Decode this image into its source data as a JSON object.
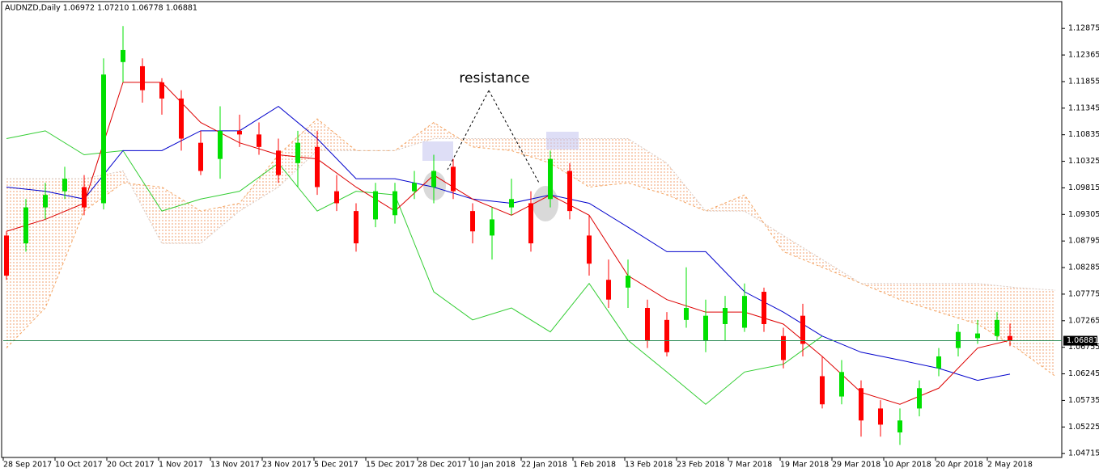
{
  "chart_data": {
    "type": "candlestick",
    "title": "AUDNZD,Daily  1.06972 1.07210 1.06778 1.06881",
    "annotation": "resistance",
    "x": [
      0,
      3,
      6,
      9,
      12,
      15,
      18,
      21,
      24,
      27,
      30,
      33,
      36,
      39,
      42,
      45,
      48,
      51,
      54,
      57,
      60,
      63,
      66,
      69,
      72,
      75,
      78,
      81,
      84,
      87,
      90,
      93,
      96,
      99,
      102,
      105,
      108,
      111,
      114,
      117,
      120,
      123,
      126,
      129,
      132,
      135,
      138,
      141,
      144,
      147,
      150,
      153,
      155
    ],
    "open": [
      1.089,
      1.0875,
      1.0944,
      1.0975,
      1.0983,
      1.0952,
      1.1223,
      1.1215,
      1.1184,
      1.1153,
      1.1068,
      1.1037,
      1.1091,
      1.1084,
      1.1053,
      1.1029,
      1.106,
      1.0975,
      1.0937,
      1.0921,
      1.0929,
      1.0975,
      1.0983,
      1.1022,
      1.0937,
      1.089,
      1.0944,
      1.0952,
      1.096,
      1.1014,
      1.089,
      1.0805,
      1.079,
      1.0751,
      1.0728,
      1.0728,
      1.0689,
      1.072,
      1.0713,
      1.0782,
      1.0697,
      1.0736,
      1.062,
      1.0581,
      1.0597,
      1.0558,
      1.0512,
      1.0558,
      1.0635,
      1.0674,
      1.0693,
      1.0697,
      1.06972
    ],
    "high": [
      1.0898,
      1.096,
      1.0991,
      1.1022,
      1.1006,
      1.123,
      1.1292,
      1.123,
      1.1192,
      1.1169,
      1.1091,
      1.1138,
      1.1122,
      1.1107,
      1.1076,
      1.1091,
      1.1091,
      1.1006,
      1.0952,
      1.0991,
      1.0991,
      1.1014,
      1.1045,
      1.1037,
      1.0952,
      1.0944,
      1.0999,
      1.0975,
      1.1053,
      1.1029,
      1.0929,
      1.0844,
      1.0844,
      1.0767,
      1.0743,
      1.0829,
      1.0767,
      1.0774,
      1.0798,
      1.079,
      1.0713,
      1.0759,
      1.0658,
      1.0651,
      1.0612,
      1.0574,
      1.0558,
      1.0612,
      1.0674,
      1.072,
      1.0728,
      1.0743,
      1.0721
    ],
    "low": [
      1.0805,
      1.0859,
      1.0921,
      1.096,
      1.0929,
      1.094,
      1.1184,
      1.1145,
      1.1122,
      1.1053,
      1.1006,
      1.0999,
      1.106,
      1.1045,
      1.0991,
      1.0983,
      1.0968,
      1.0937,
      1.0859,
      1.0906,
      1.0913,
      1.096,
      1.0952,
      1.096,
      1.0875,
      1.0844,
      1.0929,
      1.0859,
      1.0944,
      1.0921,
      1.0813,
      1.0751,
      1.0751,
      1.0674,
      1.0658,
      1.0713,
      1.0666,
      1.0689,
      1.0705,
      1.0705,
      1.0635,
      1.0658,
      1.0558,
      1.0566,
      1.0504,
      1.0504,
      1.0488,
      1.0543,
      1.062,
      1.0658,
      1.0682,
      1.0689,
      1.06778
    ],
    "close": [
      1.0813,
      1.0944,
      1.0968,
      1.0999,
      1.0944,
      1.1199,
      1.1246,
      1.1169,
      1.1153,
      1.1076,
      1.1014,
      1.1091,
      1.1084,
      1.106,
      1.1006,
      1.1068,
      1.0983,
      1.0952,
      1.0875,
      1.0975,
      1.0975,
      1.0991,
      1.1014,
      1.0975,
      1.0898,
      1.0921,
      1.096,
      1.0875,
      1.1037,
      1.0937,
      1.0836,
      1.0767,
      1.0813,
      1.0689,
      1.0666,
      1.0751,
      1.0736,
      1.0751,
      1.0774,
      1.072,
      1.0651,
      1.0682,
      1.0566,
      1.0628,
      1.0535,
      1.0527,
      1.0535,
      1.0597,
      1.0658,
      1.0705,
      1.0702,
      1.0728,
      1.06881
    ],
    "up_color": "#00e000",
    "down_color": "#ff0000",
    "lines": [
      {
        "color": "#f4a460",
        "dash": "3,3",
        "x": [
          0,
          6,
          12,
          18,
          24,
          30,
          36,
          42,
          48,
          54,
          60,
          66,
          72,
          78,
          84,
          90,
          96,
          102,
          108,
          114,
          120,
          126,
          132,
          138,
          144,
          150,
          156,
          162
        ],
        "values": [
          1.0674,
          1.0751,
          1.0937,
          1.0991,
          1.0983,
          1.0937,
          1.0952,
          1.1045,
          1.1114,
          1.1053,
          1.1053,
          1.1107,
          1.106,
          1.1053,
          1.1029,
          1.0983,
          1.0991,
          1.0968,
          1.0937,
          1.0968,
          1.0859,
          1.0829,
          1.0798,
          1.0767,
          1.0743,
          1.072,
          1.0674,
          1.062
        ]
      },
      {
        "color": "#d8c8c0",
        "dash": "2,2",
        "x": [
          0,
          6,
          12,
          18,
          24,
          30,
          36,
          42,
          48,
          54,
          60,
          66,
          72,
          78,
          84,
          90,
          96,
          102,
          108,
          114,
          120,
          126,
          132,
          138,
          144,
          150,
          156,
          162
        ],
        "values": [
          1.0999,
          1.0999,
          1.0999,
          1.1014,
          1.0875,
          1.0875,
          1.0937,
          1.0983,
          1.1053,
          1.1053,
          1.1053,
          1.1076,
          1.1076,
          1.1076,
          1.1076,
          1.1076,
          1.1076,
          1.1029,
          1.0937,
          1.0937,
          1.089,
          1.0844,
          1.0798,
          1.0798,
          1.0798,
          1.0798,
          1.079,
          1.0785
        ]
      },
      {
        "color": "#32cd32",
        "x": [
          0,
          6,
          12,
          18,
          24,
          30,
          36,
          42,
          48,
          54,
          60,
          66,
          72,
          78,
          84,
          90,
          96,
          102,
          108,
          114,
          120,
          126
        ],
        "values": [
          1.1076,
          1.1091,
          1.1045,
          1.1053,
          1.0937,
          1.096,
          1.0975,
          1.1029,
          1.0937,
          1.0975,
          1.0968,
          1.0782,
          1.0728,
          1.0751,
          1.0705,
          1.0798,
          1.0689,
          1.0628,
          1.0566,
          1.0628,
          1.0643,
          1.0697
        ]
      },
      {
        "color": "#0000cc",
        "x": [
          0,
          6,
          12,
          18,
          24,
          30,
          36,
          42,
          48,
          54,
          60,
          66,
          72,
          78,
          84,
          90,
          96,
          102,
          108,
          114,
          120,
          126,
          132,
          138,
          144,
          150,
          155
        ],
        "values": [
          1.0983,
          1.0975,
          1.096,
          1.1053,
          1.1053,
          1.1091,
          1.1091,
          1.1138,
          1.1076,
          1.0999,
          1.0999,
          1.0983,
          1.096,
          1.0952,
          1.0968,
          1.0952,
          1.0906,
          1.0859,
          1.0859,
          1.0782,
          1.0743,
          1.0697,
          1.0666,
          1.0651,
          1.0635,
          1.0612,
          1.0624
        ]
      },
      {
        "color": "#dd0000",
        "x": [
          0,
          6,
          12,
          18,
          24,
          30,
          36,
          42,
          48,
          54,
          60,
          66,
          72,
          78,
          84,
          90,
          96,
          102,
          108,
          114,
          120,
          126,
          132,
          138,
          144,
          150,
          155
        ],
        "values": [
          1.0898,
          1.0921,
          1.0952,
          1.1184,
          1.1184,
          1.1107,
          1.1068,
          1.1045,
          1.1037,
          1.0983,
          1.0937,
          1.1006,
          1.096,
          1.0929,
          1.0968,
          1.0929,
          1.0813,
          1.0767,
          1.0743,
          1.0743,
          1.072,
          1.0658,
          1.0589,
          1.0566,
          1.0597,
          1.0674,
          1.0689
        ]
      }
    ],
    "last_price": 1.06881,
    "price_line_color": "#2e8b57",
    "xlim": [
      -0.5,
      163
    ],
    "ylim": [
      1.0464,
      1.1339
    ],
    "yticks": [
      1.12875,
      1.12365,
      1.11855,
      1.11345,
      1.10835,
      1.10325,
      1.09815,
      1.09305,
      1.08795,
      1.08285,
      1.07775,
      1.07265,
      1.06755,
      1.06245,
      1.05735,
      1.05225,
      1.04715
    ],
    "xticks": [
      {
        "value": 0,
        "label": "28 Sep 2017"
      },
      {
        "value": 8,
        "label": "10 Oct 2017"
      },
      {
        "value": 16,
        "label": "20 Oct 2017"
      },
      {
        "value": 24,
        "label": "1 Nov 2017"
      },
      {
        "value": 32,
        "label": "13 Nov 2017"
      },
      {
        "value": 40,
        "label": "23 Nov 2017"
      },
      {
        "value": 48,
        "label": "5 Dec 2017"
      },
      {
        "value": 56,
        "label": "15 Dec 2017"
      },
      {
        "value": 64,
        "label": "28 Dec 2017"
      },
      {
        "value": 72,
        "label": "10 Jan 2018"
      },
      {
        "value": 80,
        "label": "22 Jan 2018"
      },
      {
        "value": 88,
        "label": "1 Feb 2018"
      },
      {
        "value": 96,
        "label": "13 Feb 2018"
      },
      {
        "value": 104,
        "label": "23 Feb 2018"
      },
      {
        "value": 112,
        "label": "7 Mar 2018"
      },
      {
        "value": 120,
        "label": "19 Mar 2018"
      },
      {
        "value": 128,
        "label": "29 Mar 2018"
      },
      {
        "value": 136,
        "label": "10 Apr 2018"
      },
      {
        "value": 144,
        "label": "20 Apr 2018"
      },
      {
        "value": 152,
        "label": "2 May 2018"
      }
    ],
    "grid": false
  }
}
